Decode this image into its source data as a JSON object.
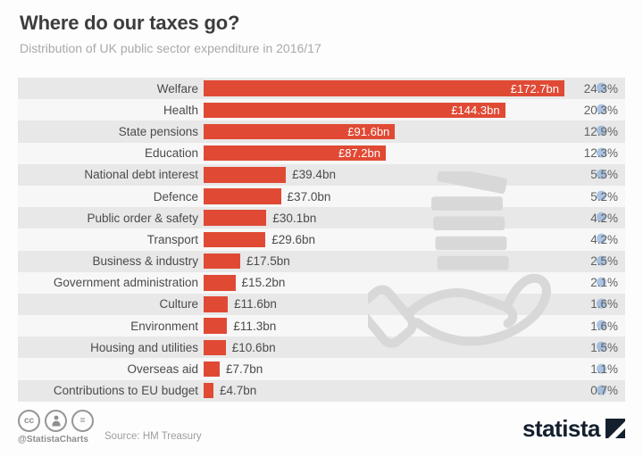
{
  "header": {
    "title": "Where do our taxes go?",
    "subtitle": "Distribution of UK public sector expenditure in 2016/17"
  },
  "chart_data": {
    "type": "bar",
    "orientation": "horizontal",
    "title": "Where do our taxes go?",
    "subtitle": "Distribution of UK public sector expenditure in 2016/17",
    "xlabel": "",
    "ylabel": "",
    "unit": "£bn",
    "xmax": 172.7,
    "xlim": [
      0,
      172.7
    ],
    "grid": false,
    "legend_position": "none",
    "categories": [
      "Welfare",
      "Health",
      "State pensions",
      "Education",
      "National debt interest",
      "Defence",
      "Public order & safety",
      "Transport",
      "Business & industry",
      "Government administration",
      "Culture",
      "Environment",
      "Housing and utilities",
      "Overseas aid",
      "Contributions to EU budget"
    ],
    "values": [
      172.7,
      144.3,
      91.6,
      87.2,
      39.4,
      37.0,
      30.1,
      29.6,
      17.5,
      15.2,
      11.6,
      11.3,
      10.6,
      7.7,
      4.7
    ],
    "value_labels": [
      "£172.7bn",
      "£144.3bn",
      "£91.6bn",
      "£87.2bn",
      "£39.4bn",
      "£37.0bn",
      "£30.1bn",
      "£29.6bn",
      "£17.5bn",
      "£15.2bn",
      "£11.6bn",
      "£11.3bn",
      "£10.6bn",
      "£7.7bn",
      "£4.7bn"
    ],
    "pct_labels": [
      "24.3%",
      "20.3%",
      "12.9%",
      "12.3%",
      "5.5%",
      "5.2%",
      "4.2%",
      "4.2%",
      "2.5%",
      "2.1%",
      "1.6%",
      "1.6%",
      "1.5%",
      "1.1%",
      "0.7%"
    ],
    "label_inside": [
      true,
      true,
      true,
      true,
      false,
      false,
      false,
      false,
      false,
      false,
      false,
      false,
      false,
      false,
      false
    ],
    "bar_color": "#e04a35",
    "stripe_color_odd": "#e8e8e8",
    "stripe_color_even": "#f7f7f7",
    "highlight_dot_color": "#7aa2d6"
  },
  "footer": {
    "handle": "@StatistaCharts",
    "source": "Source: HM Treasury",
    "brand": "statista",
    "license": {
      "cc_label": "cc",
      "nd_label": "="
    }
  }
}
